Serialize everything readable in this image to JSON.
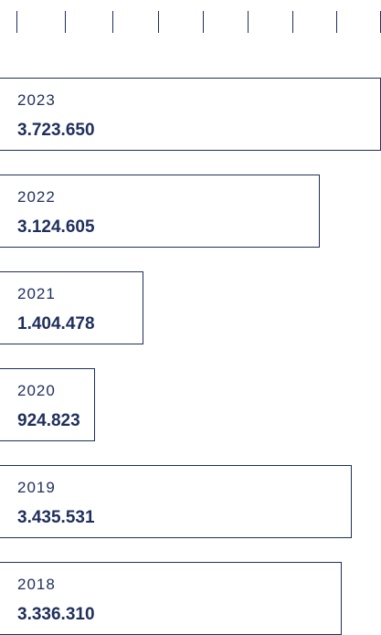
{
  "chart_data": {
    "type": "bar",
    "orientation": "horizontal",
    "categories": [
      "2023",
      "2022",
      "2021",
      "2020",
      "2019",
      "2018"
    ],
    "values": [
      3723650,
      3124605,
      1404478,
      924823,
      3435531,
      3336310
    ],
    "value_labels": [
      "3.723.650",
      "3.124.605",
      "1.404.478",
      "924.823",
      "3.435.531",
      "3.336.310"
    ],
    "xlim": [
      0,
      3723650
    ],
    "grid": false,
    "colors": {
      "bar_border": "#1f2f5c",
      "text": "#1f2f5c",
      "background": "#ffffff"
    }
  }
}
